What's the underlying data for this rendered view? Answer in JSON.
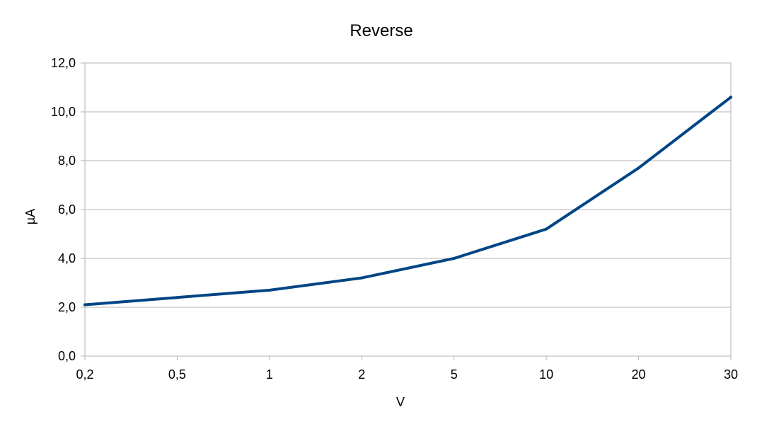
{
  "chart_data": {
    "type": "line",
    "title": "Reverse",
    "xlabel": "V",
    "ylabel": "µA",
    "categories": [
      "0,2",
      "0,5",
      "1",
      "2",
      "5",
      "10",
      "20",
      "30"
    ],
    "series": [
      {
        "values": [
          2.1,
          2.4,
          2.7,
          3.2,
          4.0,
          5.2,
          7.7,
          10.6
        ]
      }
    ],
    "ylim": [
      0,
      12
    ],
    "y_ticks": [
      0,
      2,
      4,
      6,
      8,
      10,
      12
    ],
    "y_tick_labels": [
      "0,0",
      "2,0",
      "4,0",
      "6,0",
      "8,0",
      "10,0",
      "12,0"
    ],
    "grid": true,
    "legend": "none",
    "colors": {
      "series": "#004586",
      "grid": "#b3b3b3",
      "axis": "#b3b3b3"
    }
  }
}
